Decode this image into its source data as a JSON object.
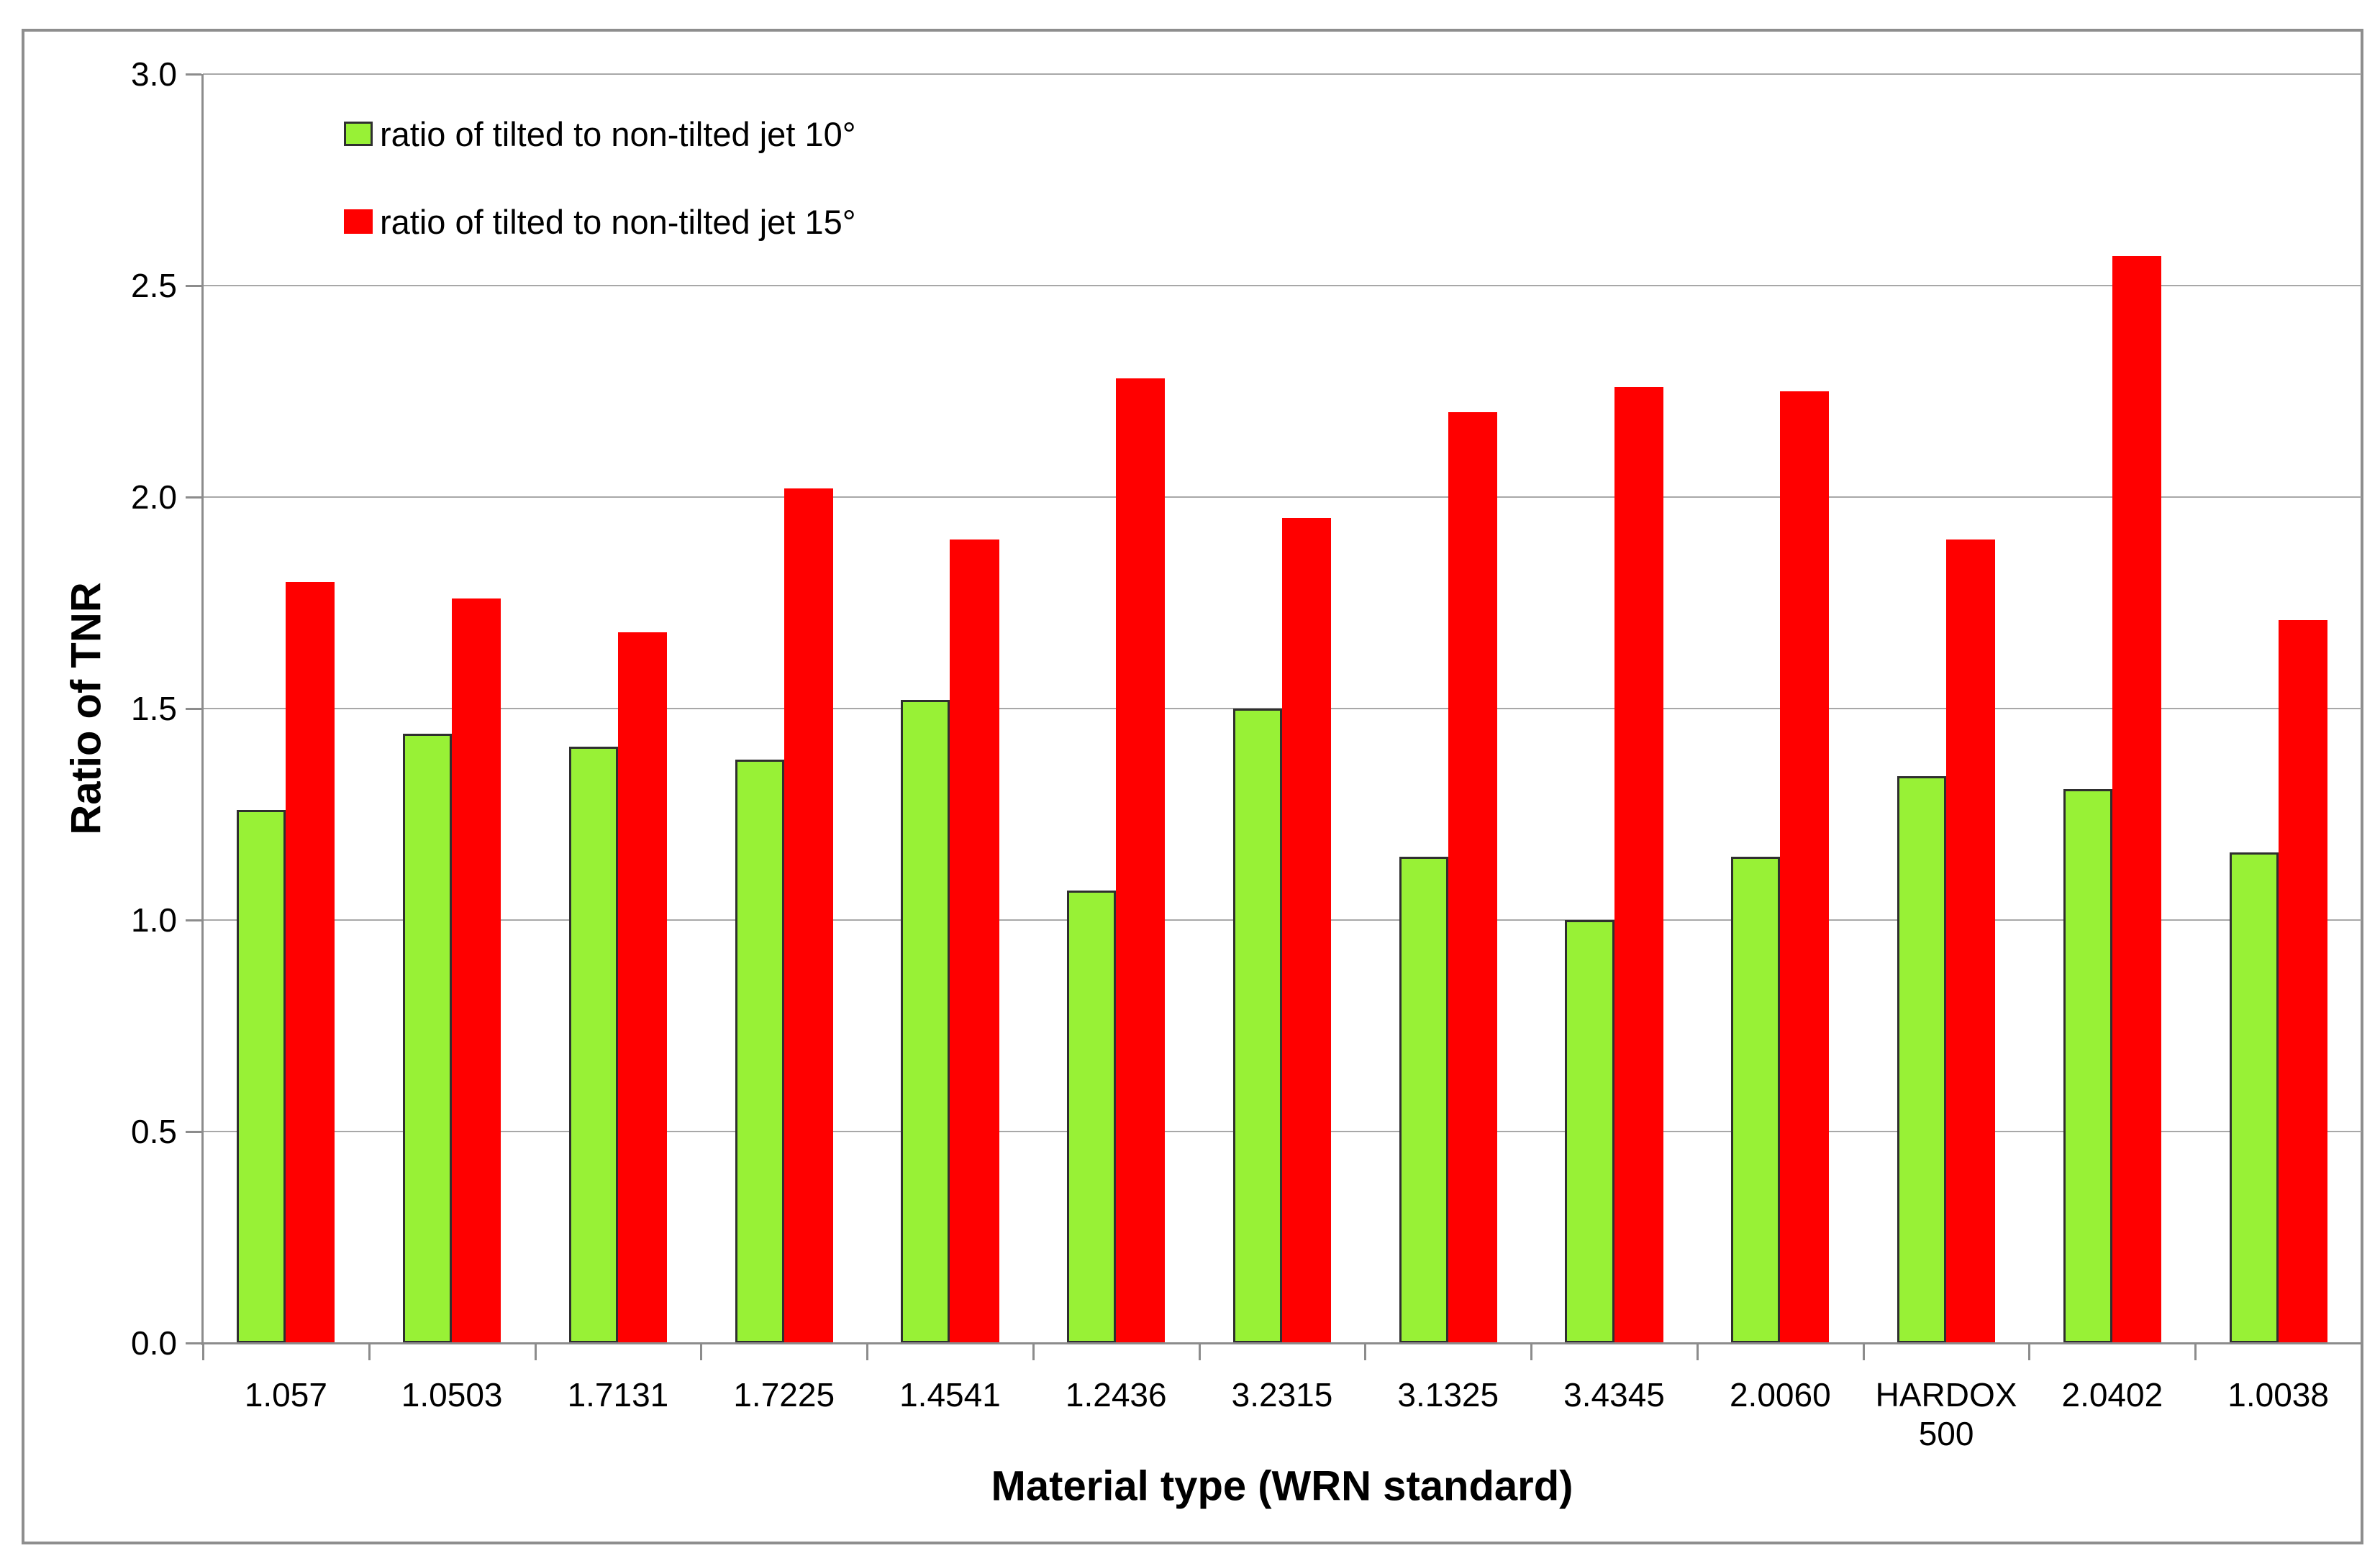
{
  "chart_data": {
    "type": "bar",
    "title": "",
    "categories": [
      "1.057",
      "1.0503",
      "1.7131",
      "1.7225",
      "1.4541",
      "1.2436",
      "3.2315",
      "3.1325",
      "3.4345",
      "2.0060",
      "HARDOX 500",
      "2.0402",
      "1.0038"
    ],
    "series": [
      {
        "name": "ratio of tilted to non-tilted jet 10°",
        "color": "#98f136",
        "border_color": "#2f2f2f",
        "values": [
          1.26,
          1.44,
          1.41,
          1.38,
          1.52,
          1.07,
          1.5,
          1.15,
          1.0,
          1.15,
          1.34,
          1.31,
          1.16
        ]
      },
      {
        "name": "ratio of tilted to non-tilted jet 15°",
        "color": "#ff0000",
        "border_color": "",
        "values": [
          1.8,
          1.76,
          1.68,
          2.02,
          1.9,
          2.28,
          1.95,
          2.2,
          2.26,
          2.25,
          1.9,
          2.57,
          1.71
        ]
      }
    ],
    "xlabel": "Material type (WRN standard)",
    "ylabel": "Ratio of TNR",
    "ylim": [
      0,
      3
    ],
    "ytick_step": 0.5,
    "ytick_labels": [
      "0.0",
      "0.5",
      "1.0",
      "1.5",
      "2.0",
      "2.5",
      "3.0"
    ],
    "grid": true,
    "legend_position": "top-left-inside",
    "colors": {
      "gridline": "#a8a8a8",
      "axis": "#8c8c8c",
      "frame_border": "#8e8e8e",
      "text": "#000000"
    }
  }
}
